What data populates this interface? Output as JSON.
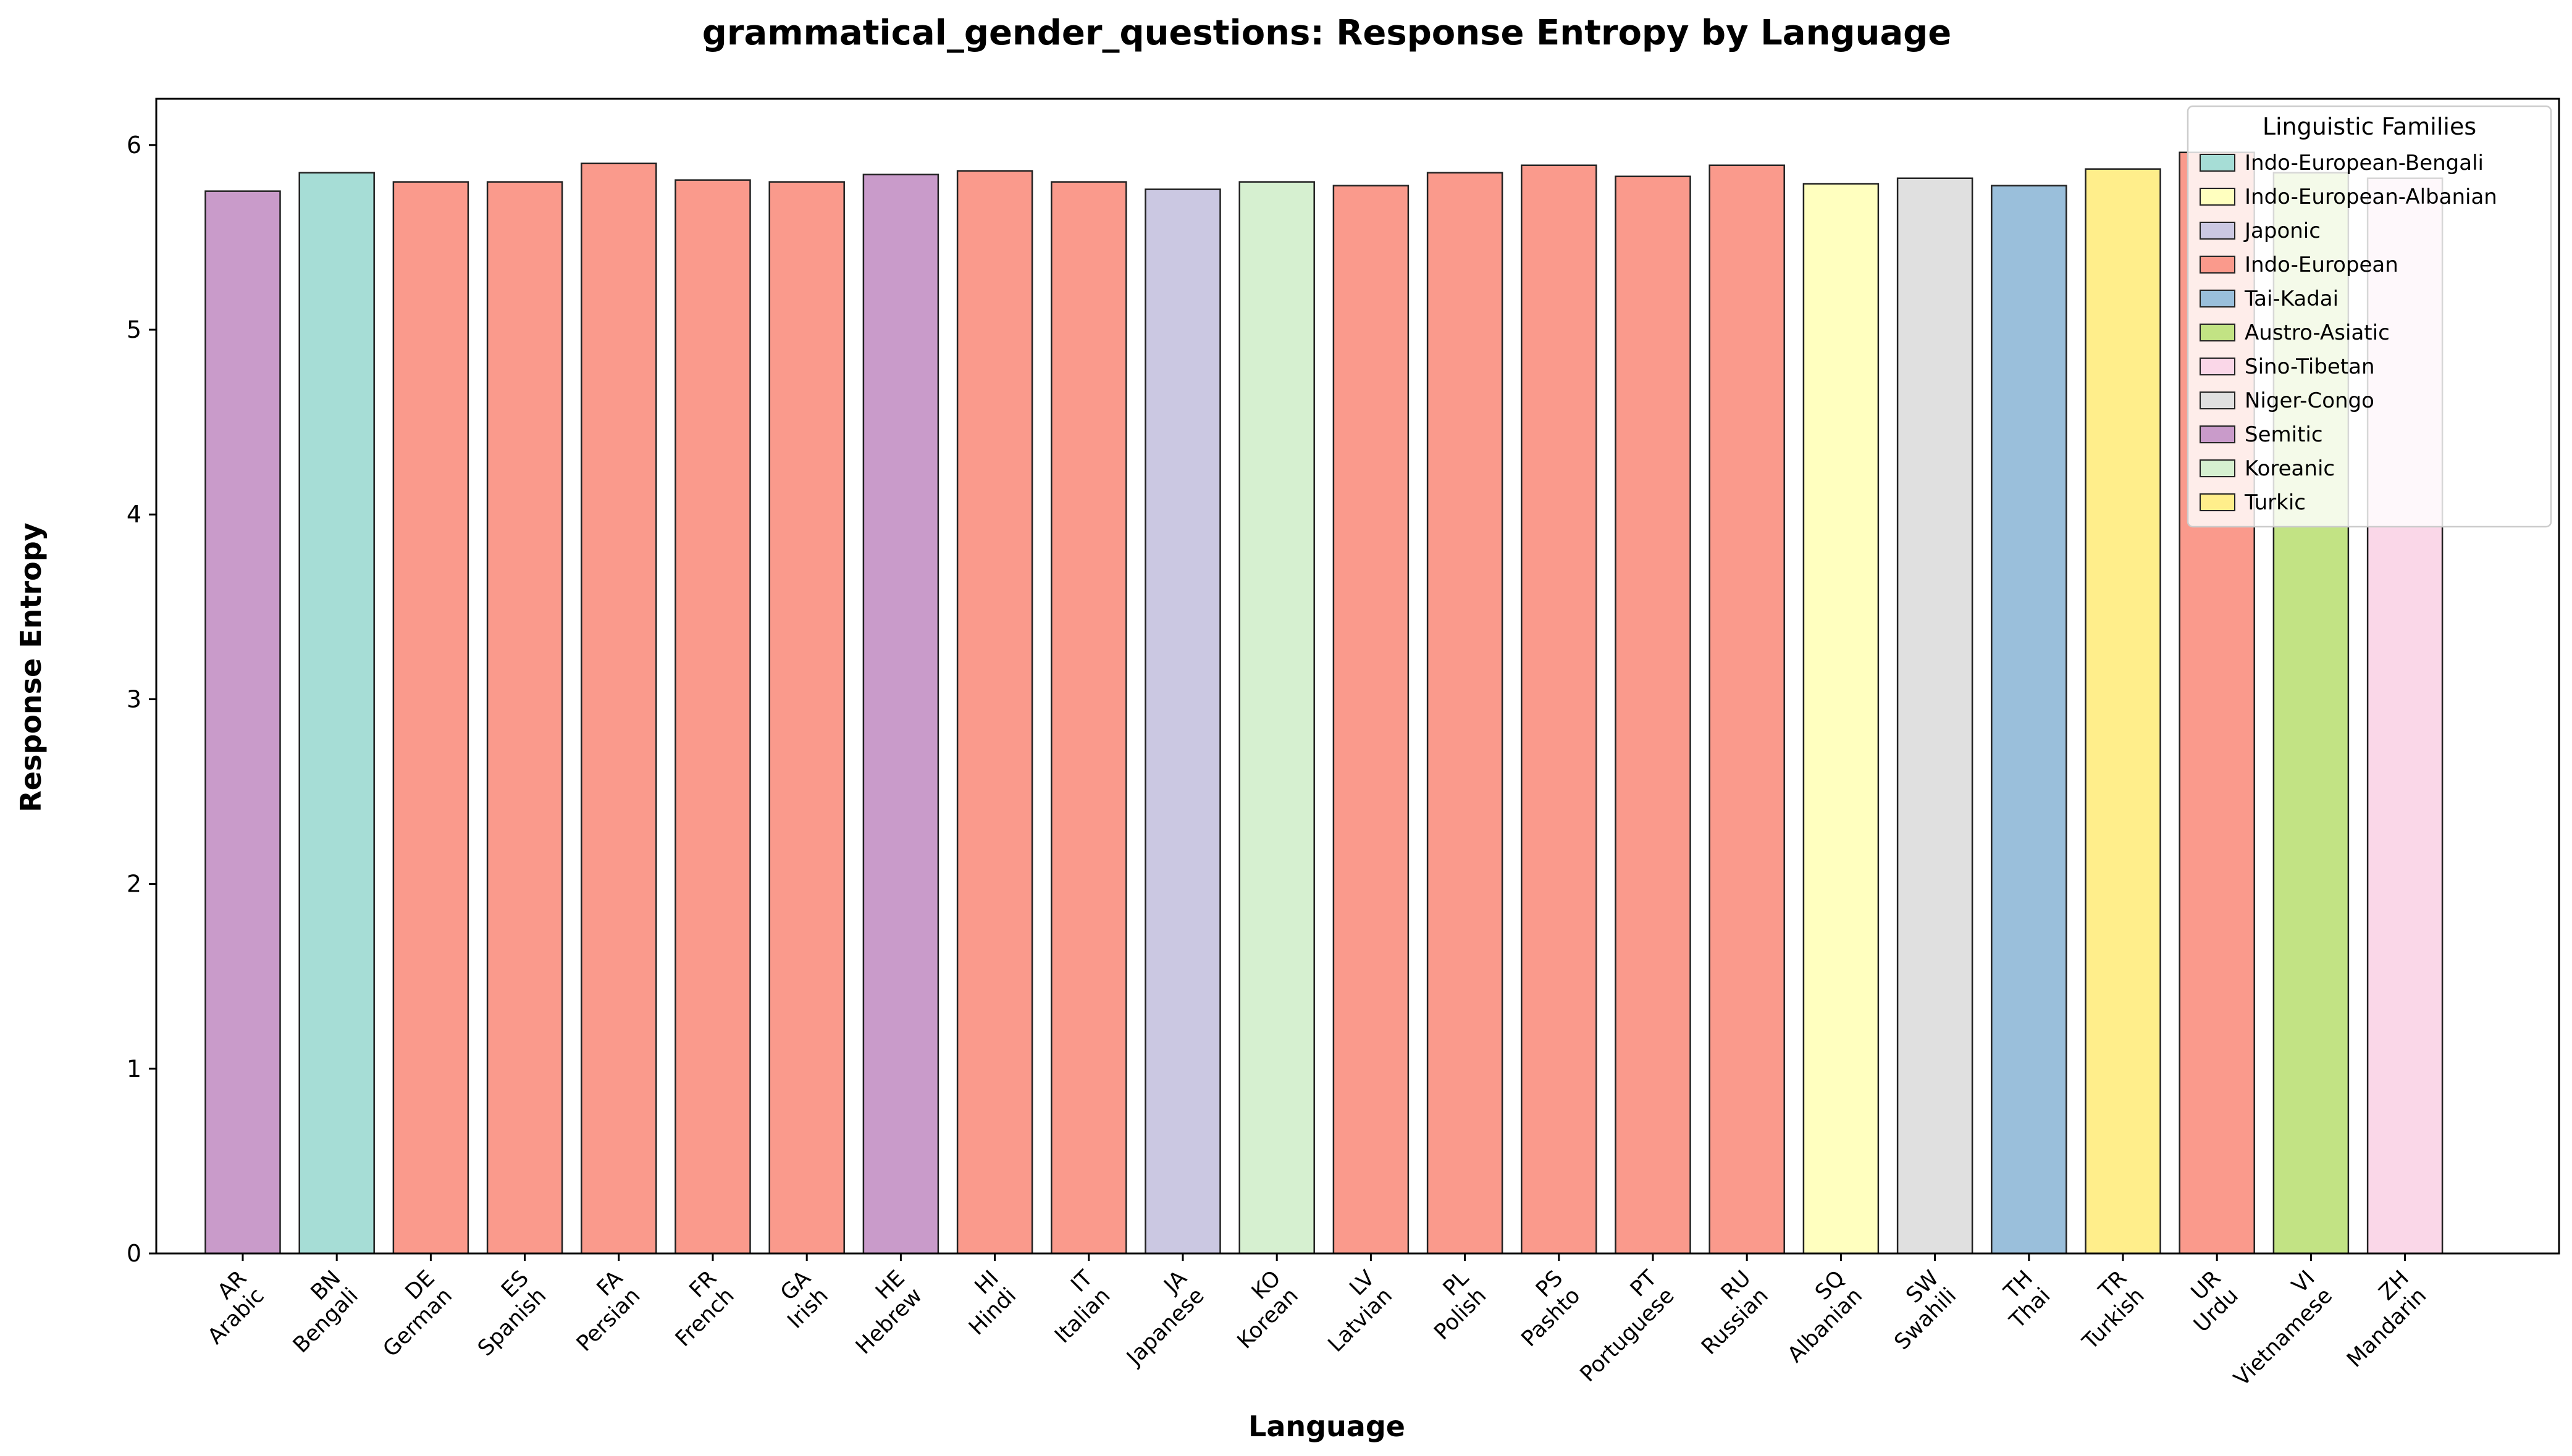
{
  "chart_data": {
    "type": "bar",
    "title": "grammatical_gender_questions: Response Entropy by Language",
    "xlabel": "Language",
    "ylabel": "Response Entropy",
    "ylim": [
      0,
      6.25
    ],
    "yticks": [
      "0",
      "1",
      "2",
      "3",
      "4",
      "5",
      "6"
    ],
    "grid": false,
    "legend": {
      "title": "Linguistic Families",
      "placement": "top-right",
      "entries": [
        {
          "name": "Indo-European-Bengali",
          "color": "#a6ddd6"
        },
        {
          "name": "Indo-European-Albanian",
          "color": "#ffffbf"
        },
        {
          "name": "Japonic",
          "color": "#cbc8e2"
        },
        {
          "name": "Indo-European",
          "color": "#fa9a8c"
        },
        {
          "name": "Tai-Kadai",
          "color": "#9abfdb"
        },
        {
          "name": "Austro-Asiatic",
          "color": "#c2e384"
        },
        {
          "name": "Sino-Tibetan",
          "color": "#fad7e8"
        },
        {
          "name": "Niger-Congo",
          "color": "#e0e0e0"
        },
        {
          "name": "Semitic",
          "color": "#c99bca"
        },
        {
          "name": "Koreanic",
          "color": "#d6f0d0"
        },
        {
          "name": "Turkic",
          "color": "#ffee8b"
        }
      ]
    },
    "bars": [
      {
        "code": "AR",
        "name": "Arabic",
        "value": 5.75,
        "family": "Semitic"
      },
      {
        "code": "BN",
        "name": "Bengali",
        "value": 5.85,
        "family": "Indo-European-Bengali"
      },
      {
        "code": "DE",
        "name": "German",
        "value": 5.8,
        "family": "Indo-European"
      },
      {
        "code": "ES",
        "name": "Spanish",
        "value": 5.8,
        "family": "Indo-European"
      },
      {
        "code": "FA",
        "name": "Persian",
        "value": 5.9,
        "family": "Indo-European"
      },
      {
        "code": "FR",
        "name": "French",
        "value": 5.81,
        "family": "Indo-European"
      },
      {
        "code": "GA",
        "name": "Irish",
        "value": 5.8,
        "family": "Indo-European"
      },
      {
        "code": "HE",
        "name": "Hebrew",
        "value": 5.84,
        "family": "Semitic"
      },
      {
        "code": "HI",
        "name": "Hindi",
        "value": 5.86,
        "family": "Indo-European"
      },
      {
        "code": "IT",
        "name": "Italian",
        "value": 5.8,
        "family": "Indo-European"
      },
      {
        "code": "JA",
        "name": "Japanese",
        "value": 5.76,
        "family": "Japonic"
      },
      {
        "code": "KO",
        "name": "Korean",
        "value": 5.8,
        "family": "Koreanic"
      },
      {
        "code": "LV",
        "name": "Latvian",
        "value": 5.78,
        "family": "Indo-European"
      },
      {
        "code": "PL",
        "name": "Polish",
        "value": 5.85,
        "family": "Indo-European"
      },
      {
        "code": "PS",
        "name": "Pashto",
        "value": 5.89,
        "family": "Indo-European"
      },
      {
        "code": "PT",
        "name": "Portuguese",
        "value": 5.83,
        "family": "Indo-European"
      },
      {
        "code": "RU",
        "name": "Russian",
        "value": 5.89,
        "family": "Indo-European"
      },
      {
        "code": "SQ",
        "name": "Albanian",
        "value": 5.79,
        "family": "Indo-European-Albanian"
      },
      {
        "code": "SW",
        "name": "Swahili",
        "value": 5.82,
        "family": "Niger-Congo"
      },
      {
        "code": "TH",
        "name": "Thai",
        "value": 5.78,
        "family": "Tai-Kadai"
      },
      {
        "code": "TR",
        "name": "Turkish",
        "value": 5.87,
        "family": "Turkic"
      },
      {
        "code": "UR",
        "name": "Urdu",
        "value": 5.96,
        "family": "Indo-European"
      },
      {
        "code": "VI",
        "name": "Vietnamese",
        "value": 5.85,
        "family": "Austro-Asiatic"
      },
      {
        "code": "ZH",
        "name": "Mandarin",
        "value": 5.82,
        "family": "Sino-Tibetan"
      }
    ]
  }
}
